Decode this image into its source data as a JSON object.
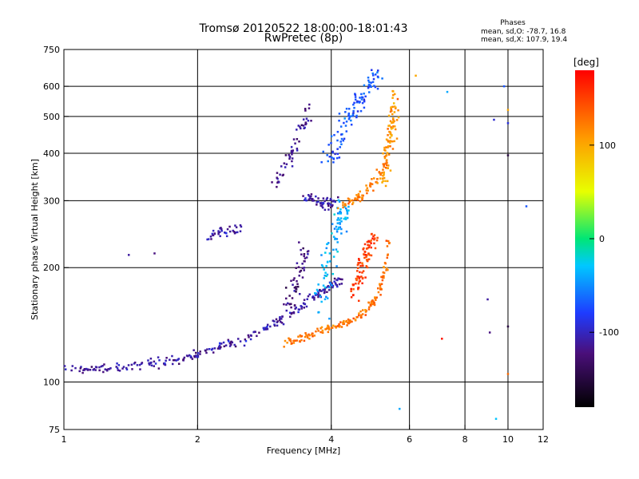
{
  "chart_data": {
    "type": "scatter",
    "title": "Tromsø 20120522 18:00:00-18:01:43",
    "subtitle": "RwPretec (8p)",
    "xlabel": "Frequency [MHz]",
    "ylabel": "Stationary phase Virtual Height [km]",
    "x_scale": "log",
    "y_scale": "log",
    "xlim": [
      1,
      12
    ],
    "ylim": [
      75,
      750
    ],
    "x_ticks": [
      1,
      2,
      4,
      6,
      8,
      10,
      12
    ],
    "y_ticks": [
      75,
      100,
      200,
      300,
      400,
      500,
      600,
      750
    ],
    "grid": true,
    "stats": {
      "heading": "Phases",
      "line1": "mean, sd,O: -78.7, 16.8",
      "line2": "mean, sd,X: 107.9, 19.4"
    },
    "colorbar": {
      "label": "[deg]",
      "ticks": [
        100,
        0,
        -100
      ],
      "range": [
        -180,
        180
      ]
    },
    "traces": [
      {
        "x": [
          1.0,
          1.15,
          1.3,
          1.5,
          1.7,
          1.9,
          2.05,
          2.3,
          2.6,
          2.9,
          3.2,
          3.5,
          3.8,
          4.0,
          4.2
        ],
        "y": [
          107,
          108,
          110,
          111,
          113,
          116,
          119,
          124,
          131,
          140,
          150,
          162,
          172,
          180,
          185
        ],
        "phase": -110,
        "spread": 0.025
      },
      {
        "x": [
          3.1,
          3.4,
          3.7,
          4.0,
          4.3,
          4.6,
          4.9,
          5.1,
          5.25,
          5.4
        ],
        "y": [
          126,
          130,
          135,
          139,
          143,
          149,
          158,
          170,
          190,
          235
        ],
        "phase": 125,
        "spread": 0.02
      },
      {
        "x": [
          4.5,
          4.6,
          4.7,
          4.8,
          4.9,
          5.0
        ],
        "y": [
          170,
          185,
          200,
          215,
          230,
          240
        ],
        "phase": 150,
        "spread": 0.05
      },
      {
        "x": [
          3.2,
          3.3,
          3.4,
          3.5
        ],
        "y": [
          150,
          175,
          200,
          225
        ],
        "phase": -125,
        "spread": 0.06
      },
      {
        "x": [
          3.8,
          3.9,
          4.0,
          4.1,
          4.2,
          4.3
        ],
        "y": [
          160,
          190,
          220,
          250,
          275,
          285
        ],
        "phase": -40,
        "spread": 0.07
      },
      {
        "x": [
          3.5,
          3.7,
          3.9,
          4.1
        ],
        "y": [
          305,
          298,
          295,
          292
        ],
        "phase": -110,
        "spread": 0.03
      },
      {
        "x": [
          4.2,
          4.5,
          4.8,
          5.1,
          5.3,
          5.45,
          5.55
        ],
        "y": [
          292,
          300,
          318,
          345,
          380,
          440,
          560
        ],
        "phase": 120,
        "spread": 0.03
      },
      {
        "x": [
          5.2,
          5.35,
          5.5,
          5.6
        ],
        "y": [
          330,
          400,
          480,
          570
        ],
        "phase": 100,
        "spread": 0.05
      },
      {
        "x": [
          3.9,
          4.1,
          4.3,
          4.5,
          4.7,
          4.9,
          5.1
        ],
        "y": [
          380,
          420,
          480,
          520,
          560,
          600,
          640
        ],
        "phase": -70,
        "spread": 0.06
      },
      {
        "x": [
          3.0,
          3.2,
          3.4,
          3.6
        ],
        "y": [
          330,
          380,
          450,
          520
        ],
        "phase": -115,
        "spread": 0.04
      },
      {
        "x": [
          2.1,
          2.3,
          2.5
        ],
        "y": [
          240,
          248,
          255
        ],
        "phase": -110,
        "spread": 0.03
      }
    ],
    "scatter_points": [
      {
        "x": 9.8,
        "y": 600,
        "phase": -70
      },
      {
        "x": 10.0,
        "y": 520,
        "phase": 100
      },
      {
        "x": 10.0,
        "y": 480,
        "phase": -90
      },
      {
        "x": 9.3,
        "y": 490,
        "phase": -95
      },
      {
        "x": 10.0,
        "y": 395,
        "phase": -150
      },
      {
        "x": 11.0,
        "y": 290,
        "phase": -70
      },
      {
        "x": 9.0,
        "y": 165,
        "phase": -110
      },
      {
        "x": 10.0,
        "y": 140,
        "phase": -150
      },
      {
        "x": 9.1,
        "y": 135,
        "phase": -120
      },
      {
        "x": 7.1,
        "y": 130,
        "phase": 170
      },
      {
        "x": 7.3,
        "y": 580,
        "phase": -40
      },
      {
        "x": 6.2,
        "y": 640,
        "phase": 100
      },
      {
        "x": 1.6,
        "y": 218,
        "phase": -120
      },
      {
        "x": 1.4,
        "y": 216,
        "phase": -110
      },
      {
        "x": 5.7,
        "y": 85,
        "phase": -40
      },
      {
        "x": 9.4,
        "y": 80,
        "phase": -30
      },
      {
        "x": 10.0,
        "y": 105,
        "phase": 130
      }
    ]
  }
}
